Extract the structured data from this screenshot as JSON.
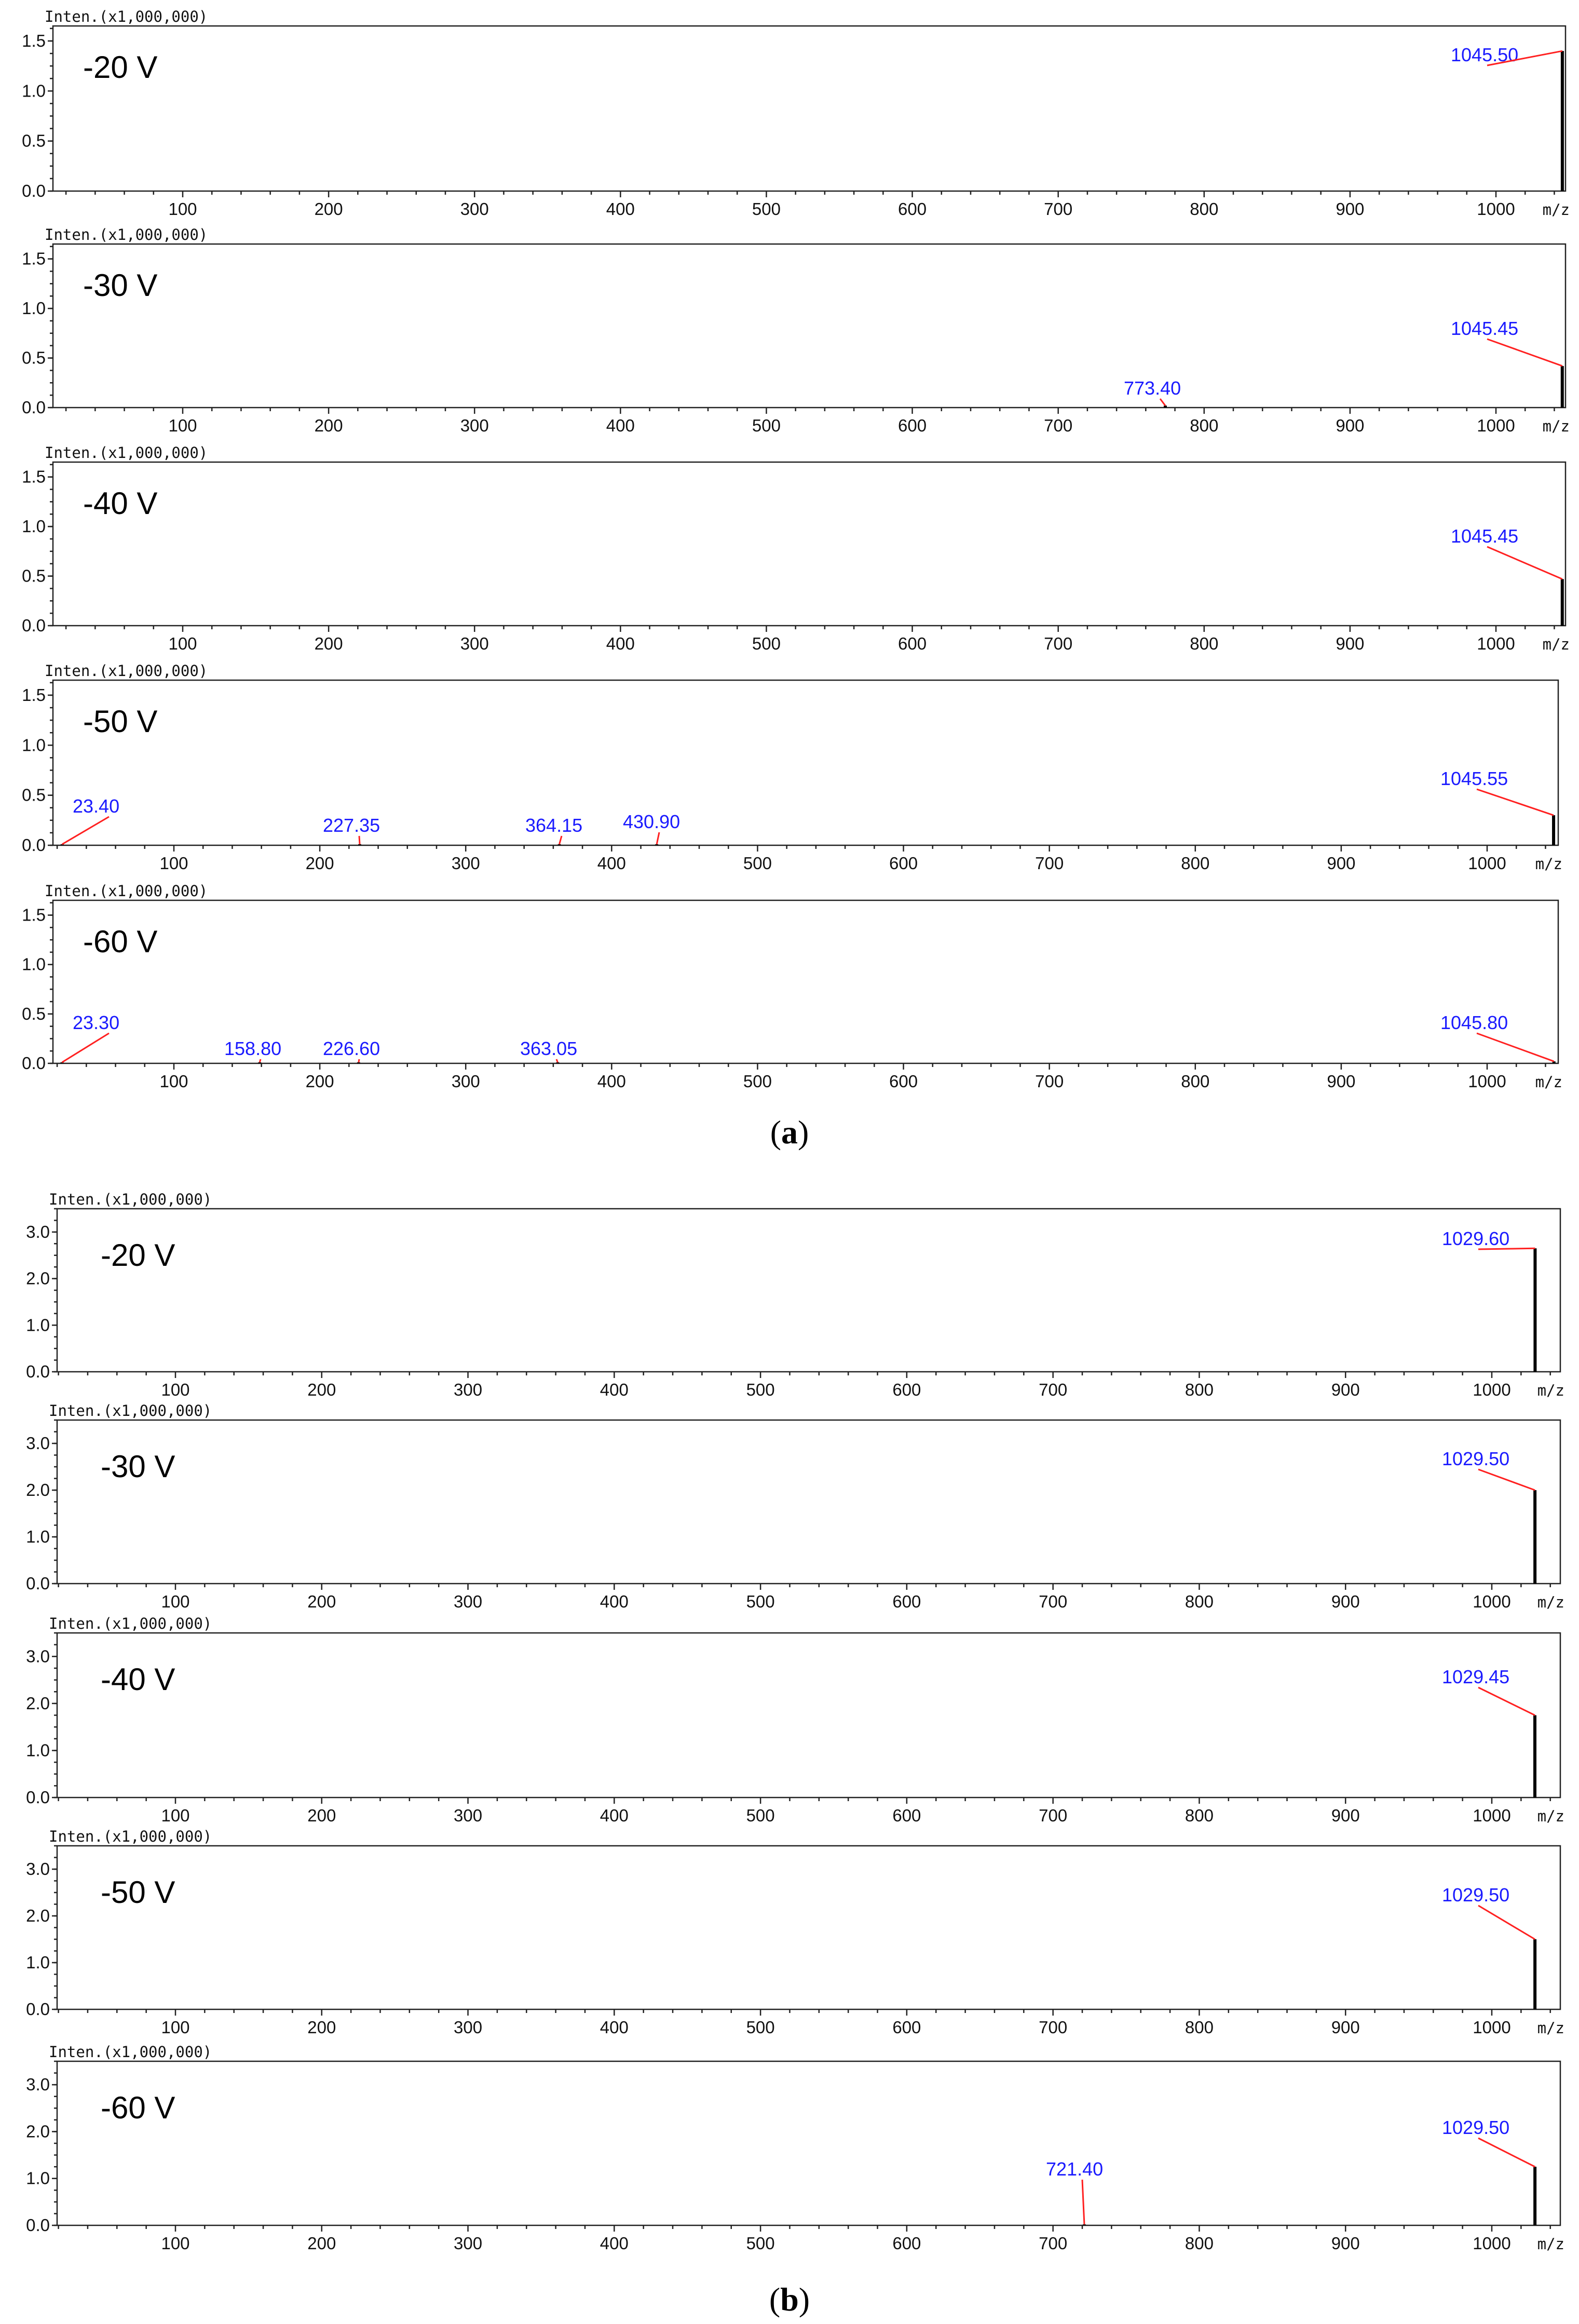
{
  "figure_labels": {
    "a": "a",
    "b": "b"
  },
  "y_axis_label": "Inten.(x1,000,000)",
  "x_axis_label": "m/z",
  "colors": {
    "peak": "#000000",
    "label": "#1a1aff",
    "leader": "#ff2020",
    "frame": "#222222"
  },
  "chart_data": [
    {
      "type": "bar",
      "group": "a",
      "title": "-20 V",
      "xlabel": "m/z",
      "ylabel": "Inten.(x1,000,000)",
      "xlim": [
        12,
        1050
      ],
      "ylim": [
        0,
        1.65
      ],
      "x_ticks": [
        100,
        200,
        300,
        400,
        500,
        600,
        700,
        800,
        900,
        1000
      ],
      "y_ticks": [
        0.0,
        0.5,
        1.0,
        1.5
      ],
      "y_tick_labels": [
        "0.0",
        "0.5",
        "1.0",
        "1.5"
      ],
      "peaks": [
        {
          "mz": 1045.5,
          "intensity": 1.4,
          "label": "1045.50"
        }
      ]
    },
    {
      "type": "bar",
      "group": "a",
      "title": "-30 V",
      "xlabel": "m/z",
      "ylabel": "Inten.(x1,000,000)",
      "xlim": [
        12,
        1050
      ],
      "ylim": [
        0,
        1.65
      ],
      "x_ticks": [
        100,
        200,
        300,
        400,
        500,
        600,
        700,
        800,
        900,
        1000
      ],
      "y_ticks": [
        0.0,
        0.5,
        1.0,
        1.5
      ],
      "y_tick_labels": [
        "0.0",
        "0.5",
        "1.0",
        "1.5"
      ],
      "peaks": [
        {
          "mz": 773.4,
          "intensity": 0.02,
          "label": "773.40"
        },
        {
          "mz": 1045.45,
          "intensity": 0.42,
          "label": "1045.45"
        }
      ]
    },
    {
      "type": "bar",
      "group": "a",
      "title": "-40 V",
      "xlabel": "m/z",
      "ylabel": "Inten.(x1,000,000)",
      "xlim": [
        12,
        1050
      ],
      "ylim": [
        0,
        1.65
      ],
      "x_ticks": [
        100,
        200,
        300,
        400,
        500,
        600,
        700,
        800,
        900,
        1000
      ],
      "y_ticks": [
        0.0,
        0.5,
        1.0,
        1.5
      ],
      "y_tick_labels": [
        "0.0",
        "0.5",
        "1.0",
        "1.5"
      ],
      "peaks": [
        {
          "mz": 1045.45,
          "intensity": 0.47,
          "label": "1045.45"
        }
      ]
    },
    {
      "type": "bar",
      "group": "a",
      "title": "-50 V",
      "xlabel": "m/z",
      "ylabel": "Inten.(x1,000,000)",
      "xlim": [
        12,
        1050
      ],
      "ylim": [
        0,
        1.65
      ],
      "x_ticks": [
        100,
        200,
        300,
        400,
        500,
        600,
        700,
        800,
        900,
        1000
      ],
      "y_ticks": [
        0.0,
        0.5,
        1.0,
        1.5
      ],
      "y_tick_labels": [
        "0.0",
        "0.5",
        "1.0",
        "1.5"
      ],
      "peaks": [
        {
          "mz": 23.4,
          "intensity": 0.01,
          "label": "23.40"
        },
        {
          "mz": 227.35,
          "intensity": 0.01,
          "label": "227.35"
        },
        {
          "mz": 364.15,
          "intensity": 0.01,
          "label": "364.15"
        },
        {
          "mz": 430.9,
          "intensity": 0.01,
          "label": "430.90"
        },
        {
          "mz": 1045.55,
          "intensity": 0.3,
          "label": "1045.55"
        }
      ]
    },
    {
      "type": "bar",
      "group": "a",
      "title": "-60 V",
      "xlabel": "m/z",
      "ylabel": "Inten.(x1,000,000)",
      "xlim": [
        12,
        1050
      ],
      "ylim": [
        0,
        1.65
      ],
      "x_ticks": [
        100,
        200,
        300,
        400,
        500,
        600,
        700,
        800,
        900,
        1000
      ],
      "y_ticks": [
        0.0,
        0.5,
        1.0,
        1.5
      ],
      "y_tick_labels": [
        "0.0",
        "0.5",
        "1.0",
        "1.5"
      ],
      "peaks": [
        {
          "mz": 23.3,
          "intensity": 0.01,
          "label": "23.30"
        },
        {
          "mz": 158.8,
          "intensity": 0.01,
          "label": "158.80"
        },
        {
          "mz": 226.6,
          "intensity": 0.01,
          "label": "226.60"
        },
        {
          "mz": 363.05,
          "intensity": 0.01,
          "label": "363.05"
        },
        {
          "mz": 1045.8,
          "intensity": 0.02,
          "label": "1045.80"
        }
      ]
    },
    {
      "type": "bar",
      "group": "b",
      "title": "-20 V",
      "xlabel": "m/z",
      "ylabel": "Inten.(x1,000,000)",
      "xlim": [
        20,
        1050
      ],
      "ylim": [
        0,
        3.5
      ],
      "x_ticks": [
        100,
        200,
        300,
        400,
        500,
        600,
        700,
        800,
        900,
        1000
      ],
      "y_ticks": [
        0.0,
        1.0,
        2.0,
        3.0
      ],
      "y_tick_labels": [
        "0.0",
        "1.0",
        "2.0",
        "3.0"
      ],
      "peaks": [
        {
          "mz": 1029.6,
          "intensity": 2.65,
          "label": "1029.60"
        }
      ]
    },
    {
      "type": "bar",
      "group": "b",
      "title": "-30 V",
      "xlabel": "m/z",
      "ylabel": "Inten.(x1,000,000)",
      "xlim": [
        20,
        1050
      ],
      "ylim": [
        0,
        3.5
      ],
      "x_ticks": [
        100,
        200,
        300,
        400,
        500,
        600,
        700,
        800,
        900,
        1000
      ],
      "y_ticks": [
        0.0,
        1.0,
        2.0,
        3.0
      ],
      "y_tick_labels": [
        "0.0",
        "1.0",
        "2.0",
        "3.0"
      ],
      "peaks": [
        {
          "mz": 1029.5,
          "intensity": 2.0,
          "label": "1029.50"
        }
      ]
    },
    {
      "type": "bar",
      "group": "b",
      "title": "-40 V",
      "xlabel": "m/z",
      "ylabel": "Inten.(x1,000,000)",
      "xlim": [
        20,
        1050
      ],
      "ylim": [
        0,
        3.5
      ],
      "x_ticks": [
        100,
        200,
        300,
        400,
        500,
        600,
        700,
        800,
        900,
        1000
      ],
      "y_ticks": [
        0.0,
        1.0,
        2.0,
        3.0
      ],
      "y_tick_labels": [
        "0.0",
        "1.0",
        "2.0",
        "3.0"
      ],
      "peaks": [
        {
          "mz": 1029.45,
          "intensity": 1.75,
          "label": "1029.45"
        }
      ]
    },
    {
      "type": "bar",
      "group": "b",
      "title": "-50 V",
      "xlabel": "m/z",
      "ylabel": "Inten.(x1,000,000)",
      "xlim": [
        20,
        1050
      ],
      "ylim": [
        0,
        3.5
      ],
      "x_ticks": [
        100,
        200,
        300,
        400,
        500,
        600,
        700,
        800,
        900,
        1000
      ],
      "y_ticks": [
        0.0,
        1.0,
        2.0,
        3.0
      ],
      "y_tick_labels": [
        "0.0",
        "1.0",
        "2.0",
        "3.0"
      ],
      "peaks": [
        {
          "mz": 1029.5,
          "intensity": 1.5,
          "label": "1029.50"
        }
      ]
    },
    {
      "type": "bar",
      "group": "b",
      "title": "-60 V",
      "xlabel": "m/z",
      "ylabel": "Inten.(x1,000,000)",
      "xlim": [
        20,
        1050
      ],
      "ylim": [
        0,
        3.5
      ],
      "x_ticks": [
        100,
        200,
        300,
        400,
        500,
        600,
        700,
        800,
        900,
        1000
      ],
      "y_ticks": [
        0.0,
        1.0,
        2.0,
        3.0
      ],
      "y_tick_labels": [
        "0.0",
        "1.0",
        "2.0",
        "3.0"
      ],
      "peaks": [
        {
          "mz": 721.4,
          "intensity": 0.02,
          "label": "721.40"
        },
        {
          "mz": 1029.5,
          "intensity": 1.25,
          "label": "1029.50"
        }
      ]
    }
  ]
}
